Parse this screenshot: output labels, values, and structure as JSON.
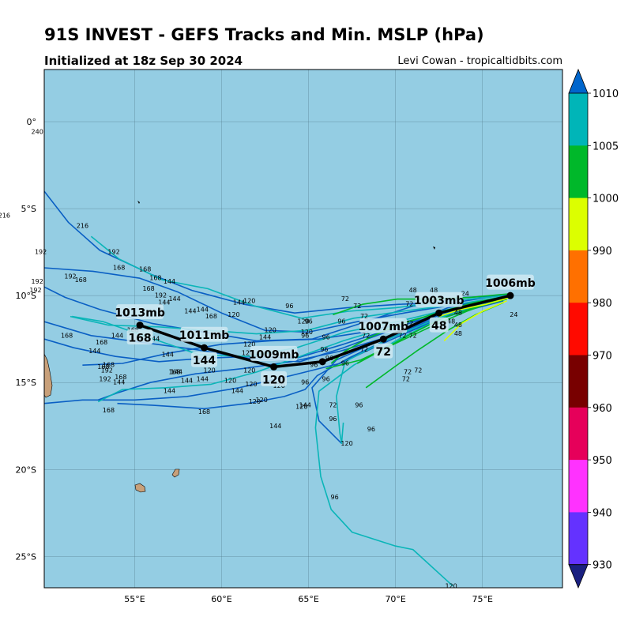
{
  "header": {
    "title": "91S INVEST - GEFS Tracks and Min. MSLP (hPa)",
    "init": "Initialized at 18z Sep 30 2024",
    "credit": "Levi Cowan - tropicaltidbits.com"
  },
  "map": {
    "lon_labels": [
      "55°E",
      "60°E",
      "65°E",
      "70°E",
      "75°E"
    ],
    "lat_labels": [
      "0°",
      "5°S",
      "10°S",
      "15°S",
      "20°S",
      "25°S"
    ],
    "ocean_color": "#94cde3",
    "land_color": "#c8a07a"
  },
  "colorbar": {
    "labels": [
      "1010",
      "1005",
      "1000",
      "990",
      "980",
      "970",
      "960",
      "950",
      "940",
      "930"
    ],
    "colors": [
      "#0066cc",
      "#00b5b8",
      "#00b82a",
      "#dcff00",
      "#ff7000",
      "#ff0a00",
      "#780000",
      "#e6005a",
      "#ff32ff",
      "#6432ff",
      "#1a2080"
    ]
  },
  "mean_track": {
    "points": [
      {
        "lon": 76.6,
        "lat": -10.0,
        "label": "1006mb"
      },
      {
        "lon": 72.5,
        "lat": -11.0,
        "label": "1003mb",
        "hour": "48"
      },
      {
        "lon": 69.3,
        "lat": -12.5,
        "label": "1007mb",
        "hour": "72"
      },
      {
        "lon": 65.8,
        "lat": -13.8
      },
      {
        "lon": 63.0,
        "lat": -14.1,
        "label": "1009mb",
        "hour": "120"
      },
      {
        "lon": 59.0,
        "lat": -13.0,
        "label": "1011mb",
        "hour": "144"
      },
      {
        "lon": 55.3,
        "lat": -11.7,
        "label": "1013mb",
        "hour": "168"
      }
    ]
  },
  "member_labels": [
    {
      "text": "240",
      "lon": 49.4,
      "lat": -0.6
    },
    {
      "text": "216",
      "lon": 47.5,
      "lat": -5.4
    },
    {
      "text": "216",
      "lon": 52.0,
      "lat": -6.0
    },
    {
      "text": "192",
      "lon": 49.6,
      "lat": -7.5
    },
    {
      "text": "192",
      "lon": 53.8,
      "lat": -7.5
    },
    {
      "text": "192",
      "lon": 51.3,
      "lat": -8.9
    },
    {
      "text": "192",
      "lon": 49.4,
      "lat": -9.2
    },
    {
      "text": "192",
      "lon": 49.3,
      "lat": -9.7
    },
    {
      "text": "168",
      "lon": 54.1,
      "lat": -8.4
    },
    {
      "text": "168",
      "lon": 55.6,
      "lat": -8.5
    },
    {
      "text": "168",
      "lon": 51.9,
      "lat": -9.1
    },
    {
      "text": "168",
      "lon": 56.2,
      "lat": -9.0
    },
    {
      "text": "168",
      "lon": 55.8,
      "lat": -9.6
    },
    {
      "text": "192",
      "lon": 56.5,
      "lat": -10.0
    },
    {
      "text": "144",
      "lon": 57.0,
      "lat": -9.2
    },
    {
      "text": "144",
      "lon": 57.3,
      "lat": -10.2
    },
    {
      "text": "144",
      "lon": 56.7,
      "lat": -10.4
    },
    {
      "text": "144",
      "lon": 58.2,
      "lat": -10.9
    },
    {
      "text": "144",
      "lon": 58.9,
      "lat": -10.8
    },
    {
      "text": "144",
      "lon": 61.0,
      "lat": -10.4
    },
    {
      "text": "120",
      "lon": 61.6,
      "lat": -10.3
    },
    {
      "text": "168",
      "lon": 59.4,
      "lat": -11.2
    },
    {
      "text": "120",
      "lon": 60.7,
      "lat": -11.1
    },
    {
      "text": "96",
      "lon": 63.9,
      "lat": -10.6
    },
    {
      "text": "72",
      "lon": 67.1,
      "lat": -10.2
    },
    {
      "text": "72",
      "lon": 67.8,
      "lat": -10.6
    },
    {
      "text": "48",
      "lon": 71.0,
      "lat": -9.7
    },
    {
      "text": "48",
      "lon": 72.2,
      "lat": -9.7
    },
    {
      "text": "48",
      "lon": 72.0,
      "lat": -10.3
    },
    {
      "text": "24",
      "lon": 74.0,
      "lat": -9.9
    },
    {
      "text": "48",
      "lon": 73.6,
      "lat": -11.0
    },
    {
      "text": "48",
      "lon": 73.2,
      "lat": -11.5
    },
    {
      "text": "48",
      "lon": 73.6,
      "lat": -11.7
    },
    {
      "text": "48",
      "lon": 73.6,
      "lat": -12.2
    },
    {
      "text": "24",
      "lon": 76.8,
      "lat": -11.1
    },
    {
      "text": "72",
      "lon": 70.8,
      "lat": -10.5
    },
    {
      "text": "72",
      "lon": 70.8,
      "lat": -11.6
    },
    {
      "text": "72",
      "lon": 70.4,
      "lat": -12.3
    },
    {
      "text": "72",
      "lon": 71.0,
      "lat": -12.3
    },
    {
      "text": "72",
      "lon": 68.2,
      "lat": -11.2
    },
    {
      "text": "72",
      "lon": 68.3,
      "lat": -12.3
    },
    {
      "text": "72",
      "lon": 68.2,
      "lat": -13.1
    },
    {
      "text": "72",
      "lon": 70.7,
      "lat": -14.4
    },
    {
      "text": "72",
      "lon": 71.3,
      "lat": -14.3
    },
    {
      "text": "72",
      "lon": 70.6,
      "lat": -14.8
    },
    {
      "text": "72",
      "lon": 66.4,
      "lat": -16.3
    },
    {
      "text": "96",
      "lon": 65.0,
      "lat": -11.5
    },
    {
      "text": "120",
      "lon": 64.7,
      "lat": -11.5
    },
    {
      "text": "120",
      "lon": 64.9,
      "lat": -12.1
    },
    {
      "text": "96",
      "lon": 64.8,
      "lat": -12.3
    },
    {
      "text": "96",
      "lon": 66.0,
      "lat": -12.4
    },
    {
      "text": "96",
      "lon": 66.9,
      "lat": -11.5
    },
    {
      "text": "96",
      "lon": 65.9,
      "lat": -13.1
    },
    {
      "text": "96",
      "lon": 65.3,
      "lat": -14.0
    },
    {
      "text": "96",
      "lon": 66.2,
      "lat": -13.6
    },
    {
      "text": "96",
      "lon": 67.1,
      "lat": -13.9
    },
    {
      "text": "96",
      "lon": 66.0,
      "lat": -14.8
    },
    {
      "text": "96",
      "lon": 64.8,
      "lat": -15.0
    },
    {
      "text": "96",
      "lon": 67.9,
      "lat": -16.3
    },
    {
      "text": "96",
      "lon": 66.4,
      "lat": -17.1
    },
    {
      "text": "96",
      "lon": 68.6,
      "lat": -17.7
    },
    {
      "text": "96",
      "lon": 66.5,
      "lat": -21.6
    },
    {
      "text": "120",
      "lon": 62.8,
      "lat": -12.0
    },
    {
      "text": "120",
      "lon": 61.6,
      "lat": -12.8
    },
    {
      "text": "120",
      "lon": 61.5,
      "lat": -13.3
    },
    {
      "text": "120",
      "lon": 61.6,
      "lat": -14.3
    },
    {
      "text": "120",
      "lon": 59.3,
      "lat": -14.3
    },
    {
      "text": "120",
      "lon": 60.5,
      "lat": -14.9
    },
    {
      "text": "120",
      "lon": 61.7,
      "lat": -15.1
    },
    {
      "text": "120",
      "lon": 62.3,
      "lat": -16.0
    },
    {
      "text": "120",
      "lon": 61.9,
      "lat": -16.1
    },
    {
      "text": "120",
      "lon": 63.3,
      "lat": -15.2
    },
    {
      "text": "120",
      "lon": 64.6,
      "lat": -16.4
    },
    {
      "text": "120",
      "lon": 67.2,
      "lat": -18.5
    },
    {
      "text": "120",
      "lon": 73.2,
      "lat": -26.7
    },
    {
      "text": "144",
      "lon": 54.0,
      "lat": -12.3
    },
    {
      "text": "144",
      "lon": 52.7,
      "lat": -13.2
    },
    {
      "text": "144",
      "lon": 56.1,
      "lat": -12.5
    },
    {
      "text": "144",
      "lon": 56.9,
      "lat": -13.4
    },
    {
      "text": "144",
      "lon": 57.4,
      "lat": -14.4
    },
    {
      "text": "144",
      "lon": 58.9,
      "lat": -14.8
    },
    {
      "text": "144",
      "lon": 58.0,
      "lat": -14.9
    },
    {
      "text": "144",
      "lon": 54.1,
      "lat": -15.0
    },
    {
      "text": "144",
      "lon": 57.0,
      "lat": -15.5
    },
    {
      "text": "144",
      "lon": 60.9,
      "lat": -15.5
    },
    {
      "text": "144",
      "lon": 62.5,
      "lat": -12.4
    },
    {
      "text": "144",
      "lon": 63.2,
      "lat": -13.4
    },
    {
      "text": "144",
      "lon": 64.8,
      "lat": -16.3
    },
    {
      "text": "144",
      "lon": 63.1,
      "lat": -17.5
    },
    {
      "text": "168",
      "lon": 51.1,
      "lat": -12.3
    },
    {
      "text": "168",
      "lon": 53.1,
      "lat": -12.7
    },
    {
      "text": "168",
      "lon": 54.9,
      "lat": -12.0
    },
    {
      "text": "168",
      "lon": 53.5,
      "lat": -14.0
    },
    {
      "text": "168",
      "lon": 53.2,
      "lat": -14.1
    },
    {
      "text": "168",
      "lon": 54.2,
      "lat": -14.7
    },
    {
      "text": "168",
      "lon": 57.3,
      "lat": -14.4
    },
    {
      "text": "168",
      "lon": 59.0,
      "lat": -16.7
    },
    {
      "text": "168",
      "lon": 53.5,
      "lat": -16.6
    },
    {
      "text": "192",
      "lon": 53.4,
      "lat": -14.3
    },
    {
      "text": "192",
      "lon": 53.3,
      "lat": -14.8
    }
  ]
}
